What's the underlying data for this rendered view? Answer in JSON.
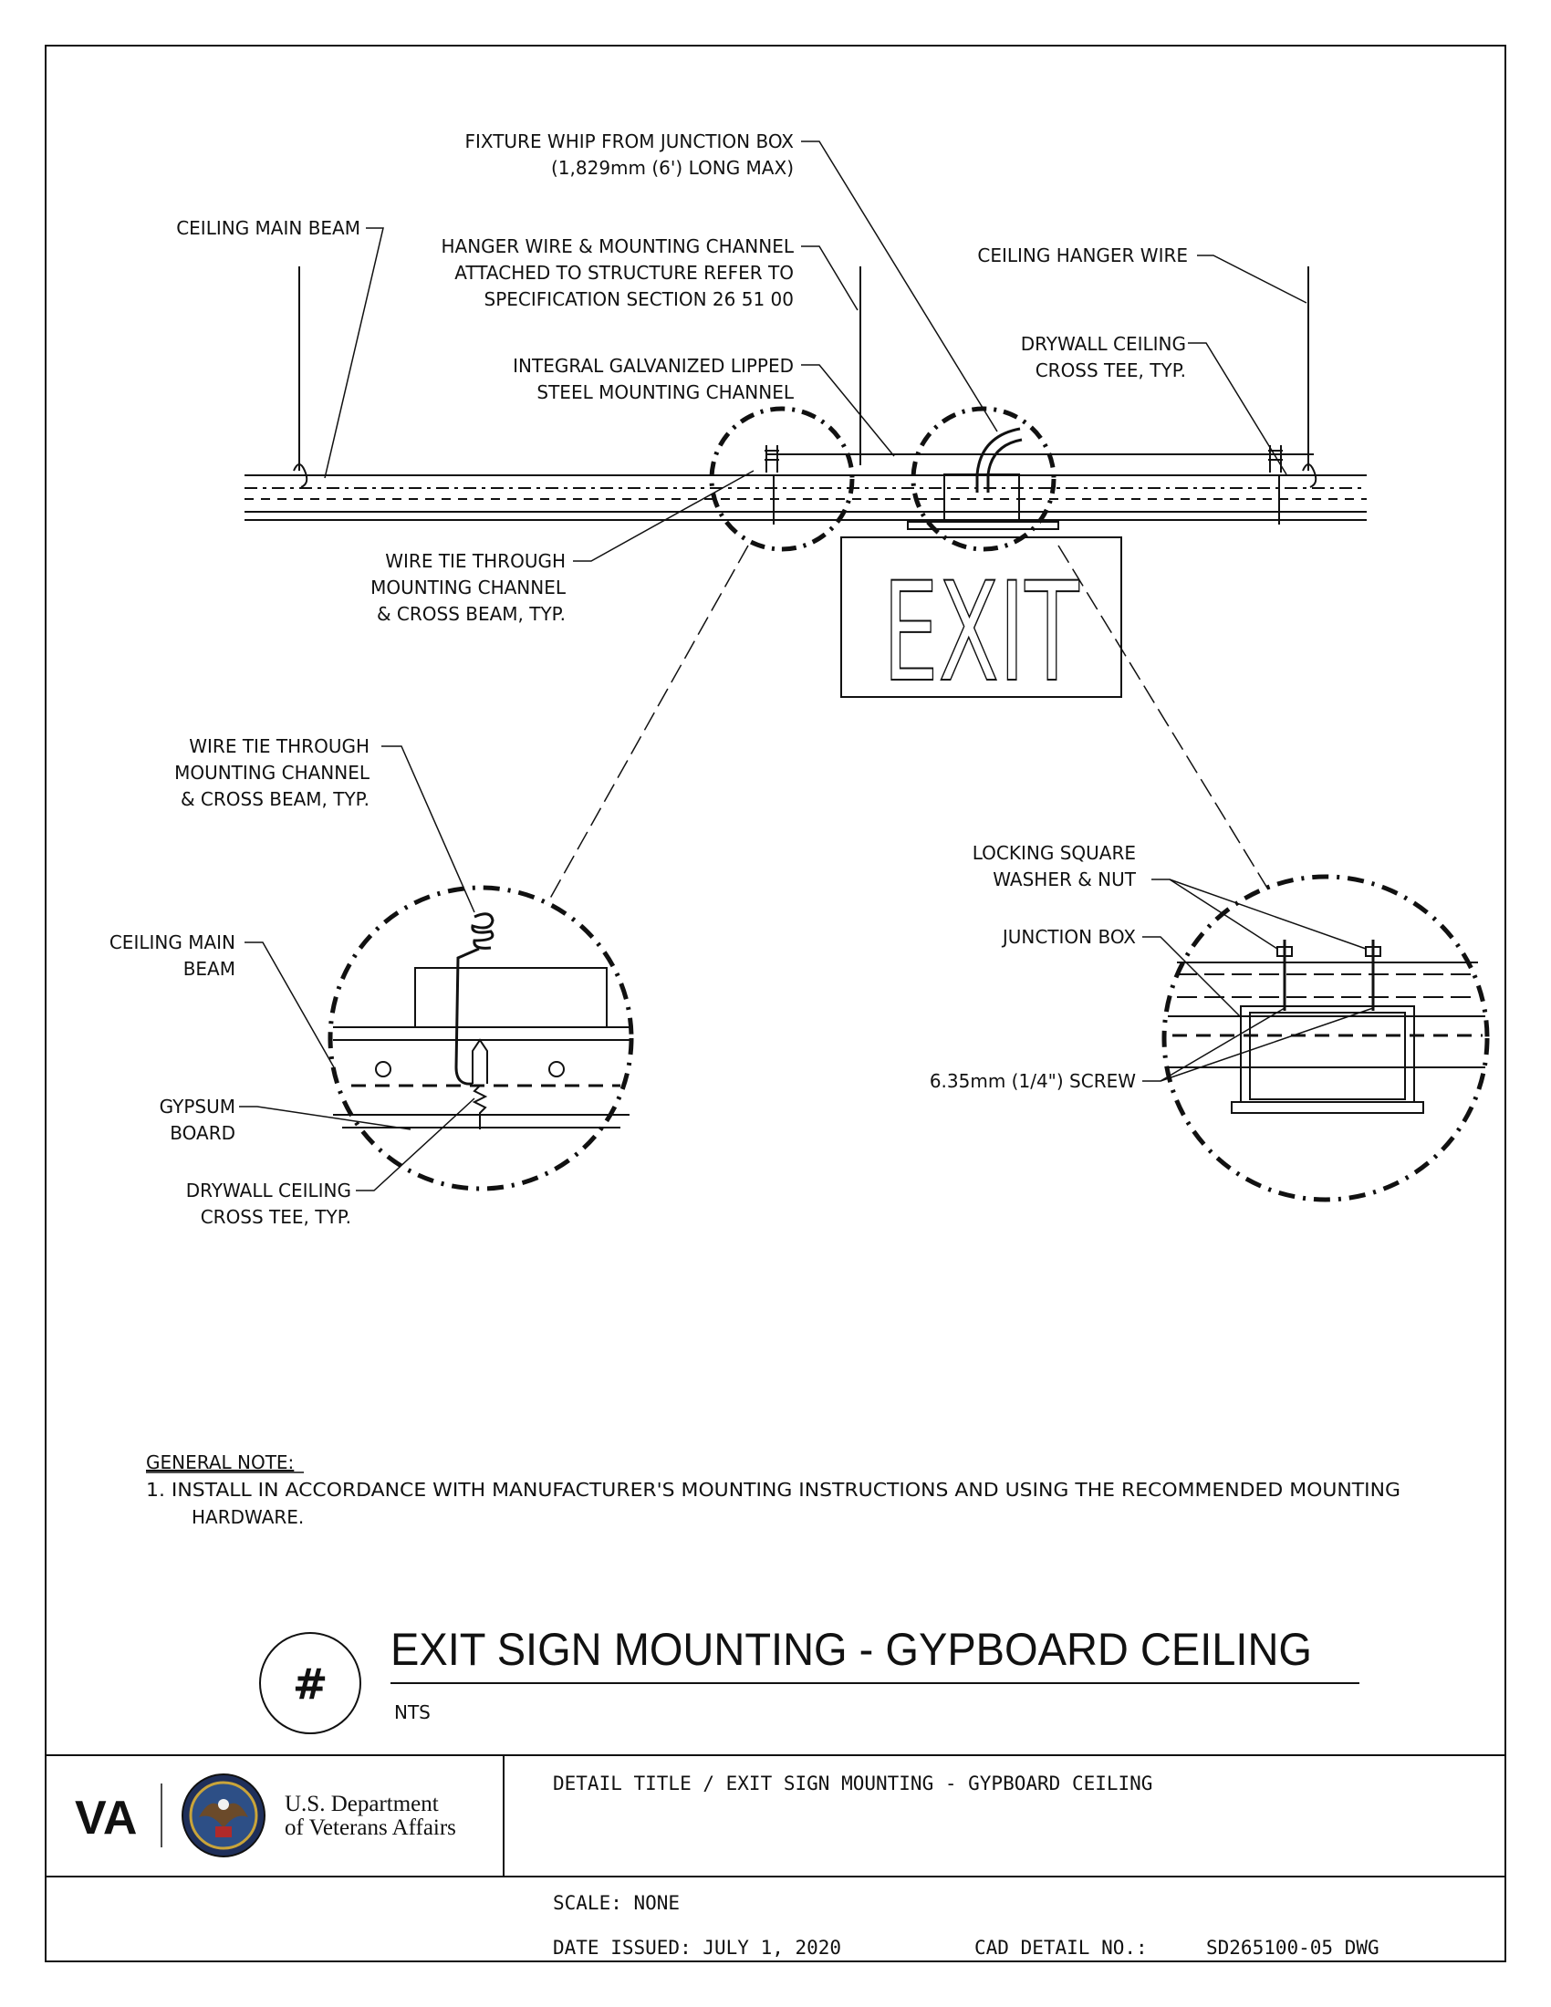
{
  "labels": {
    "fixture_whip_1": "FIXTURE WHIP FROM JUNCTION BOX",
    "fixture_whip_2": "(1,829mm (6') LONG MAX)",
    "ceiling_main_beam": "CEILING MAIN BEAM",
    "hanger_1": "HANGER WIRE & MOUNTING CHANNEL",
    "hanger_2": "ATTACHED TO STRUCTURE REFER TO",
    "hanger_3": "SPECIFICATION SECTION 26 51 00",
    "ceiling_hanger_wire": "CEILING HANGER WIRE",
    "integral_1": "INTEGRAL GALVANIZED LIPPED",
    "integral_2": "STEEL MOUNTING CHANNEL",
    "cross_tee_1": "DRYWALL CEILING",
    "cross_tee_2": "CROSS TEE, TYP.",
    "wire_tie_1": "WIRE TIE THROUGH",
    "wire_tie_2": "MOUNTING CHANNEL",
    "wire_tie_3": "& CROSS BEAM, TYP.",
    "exit_sign": "EXIT",
    "det_wire_tie_1": "WIRE TIE THROUGH",
    "det_wire_tie_2": "MOUNTING CHANNEL",
    "det_wire_tie_3": "& CROSS BEAM, TYP.",
    "det_main_beam_1": "CEILING MAIN",
    "det_main_beam_2": "BEAM",
    "det_gypsum_1": "GYPSUM",
    "det_gypsum_2": "BOARD",
    "det_cross_tee_1": "DRYWALL CEILING",
    "det_cross_tee_2": "CROSS TEE, TYP.",
    "locking_1": "LOCKING SQUARE",
    "locking_2": "WASHER & NUT",
    "junction_box": "JUNCTION BOX",
    "screw": "6.35mm (1/4\") SCREW"
  },
  "note": {
    "heading": "GENERAL NOTE:",
    "line1": "1.   INSTALL IN ACCORDANCE WITH MANUFACTURER'S MOUNTING INSTRUCTIONS AND USING THE RECOMMENDED MOUNTING",
    "line2": "HARDWARE."
  },
  "title": {
    "symbol": "#",
    "text": "EXIT SIGN MOUNTING - GYPBOARD CEILING",
    "scale_note": "NTS"
  },
  "title_block": {
    "logo": "VA",
    "dept_line1": "U.S. Department",
    "dept_line2": "of Veterans Affairs",
    "detail_title": "DETAIL TITLE / EXIT SIGN MOUNTING - GYPBOARD CEILING",
    "scale": "SCALE: NONE",
    "date_issued": "DATE ISSUED: JULY 1, 2020",
    "cad_label": "CAD DETAIL NO.:",
    "cad_number": "SD265100-05 DWG"
  }
}
